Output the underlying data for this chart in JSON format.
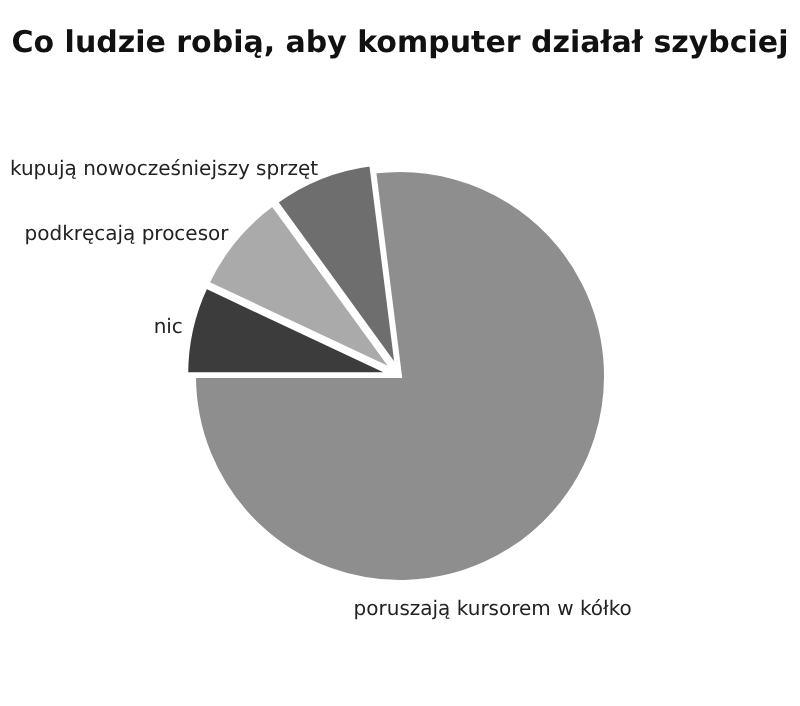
{
  "chart_data": {
    "type": "pie",
    "title": "Co ludzie robią, aby komputer działał szybciej",
    "categories": [
      "nic",
      "podkręcają procesor",
      "kupują nowocześniejszy sprzęt",
      "poruszają kursorem w kółko"
    ],
    "values": [
      7,
      8,
      8,
      77
    ],
    "colors": [
      "#3c3c3c",
      "#aaaaaa",
      "#6e6e6e",
      "#8e8e8e"
    ]
  }
}
